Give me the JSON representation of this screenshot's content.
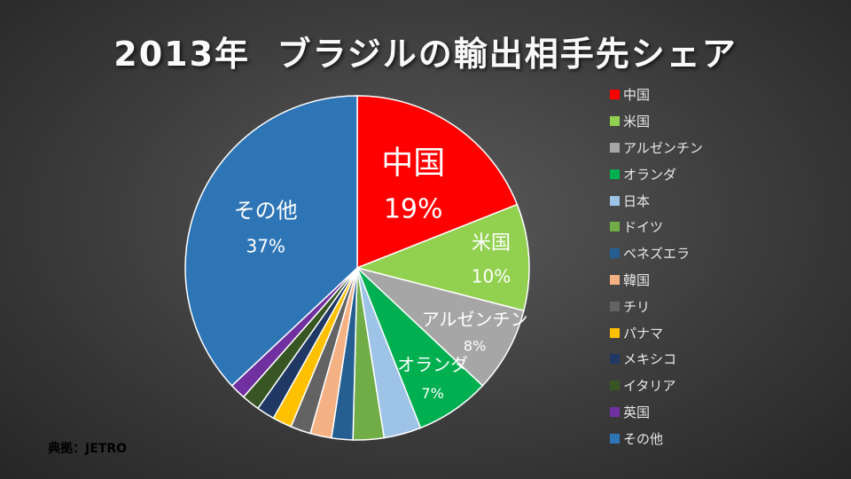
{
  "title": "2013年  ブラジルの輸出相手先シェア",
  "source": "典拠：JETRO",
  "chart_data": {
    "type": "pie",
    "title": "2013年  ブラジルの輸出相手先シェア",
    "legend_position": "right",
    "slices": [
      {
        "label": "中国",
        "value": 19,
        "color": "#ff0000"
      },
      {
        "label": "米国",
        "value": 10,
        "color": "#92d050"
      },
      {
        "label": "アルゼンチン",
        "value": 8,
        "color": "#a6a6a6"
      },
      {
        "label": "オランダ",
        "value": 7,
        "color": "#00b050"
      },
      {
        "label": "日本",
        "value": 3.5,
        "color": "#9dc3e6"
      },
      {
        "label": "ドイツ",
        "value": 2.9,
        "color": "#70ad47"
      },
      {
        "label": "ベネズエラ",
        "value": 2.0,
        "color": "#255e91"
      },
      {
        "label": "韓国",
        "value": 2.0,
        "color": "#f4b183"
      },
      {
        "label": "チリ",
        "value": 1.9,
        "color": "#636363"
      },
      {
        "label": "パナマ",
        "value": 1.8,
        "color": "#ffc000"
      },
      {
        "label": "メキシコ",
        "value": 1.7,
        "color": "#203864"
      },
      {
        "label": "イタリア",
        "value": 1.7,
        "color": "#375623"
      },
      {
        "label": "英国",
        "value": 1.5,
        "color": "#7030a0"
      },
      {
        "label": "その他",
        "value": 37,
        "color": "#2e75b6"
      }
    ],
    "data_labels": [
      {
        "slice": "中国",
        "name": "中国",
        "pct": "19%"
      },
      {
        "slice": "米国",
        "name": "米国",
        "pct": "10%"
      },
      {
        "slice": "アルゼンチン",
        "name": "アルゼンチン",
        "pct": "8%"
      },
      {
        "slice": "オランダ",
        "name": "オランダ",
        "pct": "7%"
      },
      {
        "slice": "その他",
        "name": "その他",
        "pct": "37%"
      }
    ]
  }
}
